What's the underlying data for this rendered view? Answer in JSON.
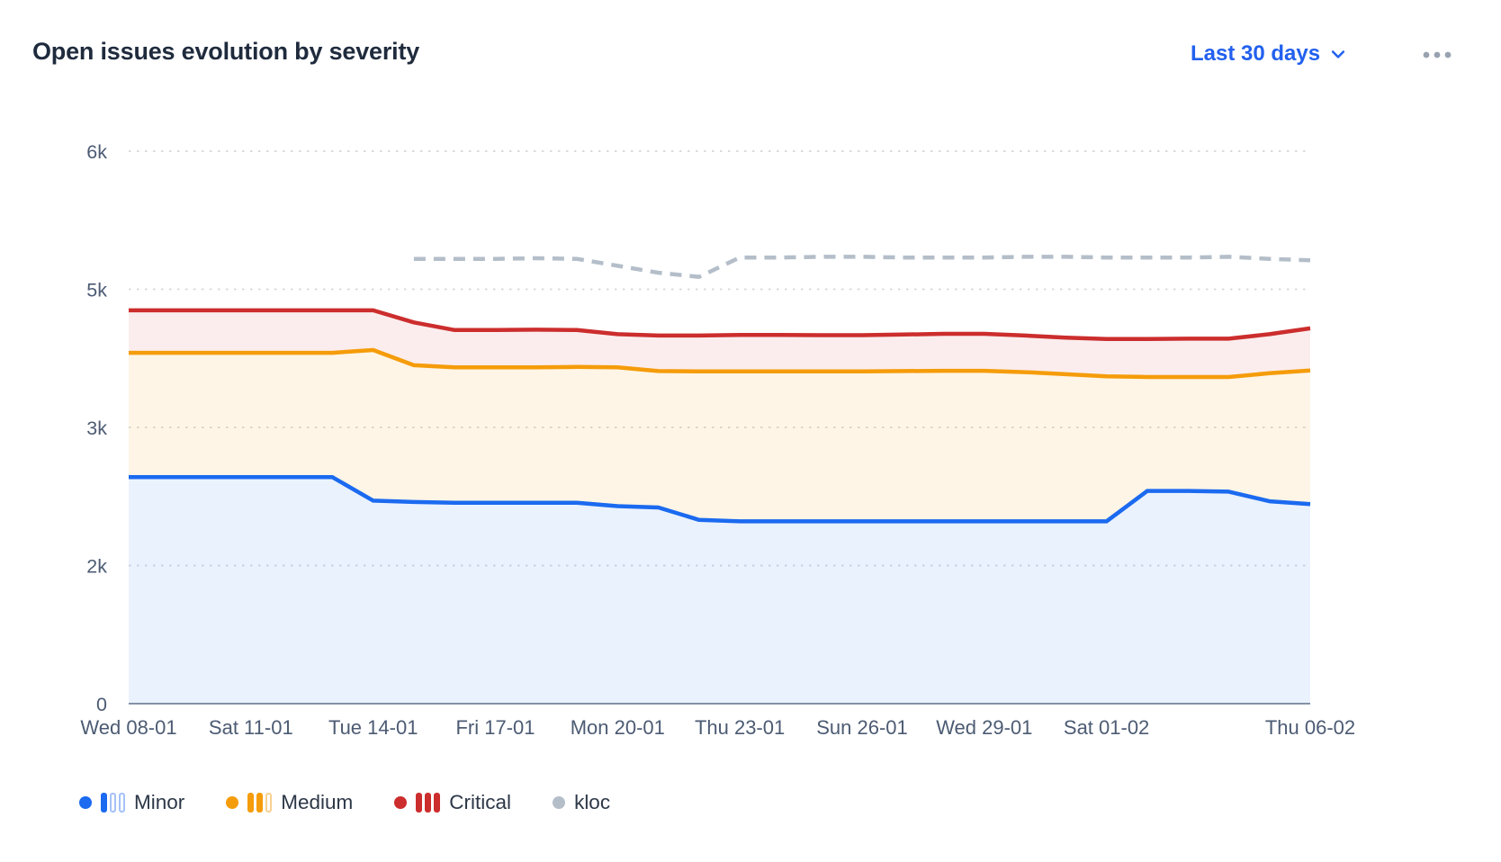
{
  "header": {
    "title": "Open issues evolution by severity",
    "range_selector": {
      "label": "Last 30 days"
    }
  },
  "colors": {
    "accent_blue": "#2260ee",
    "title_text": "#1f2b3d",
    "axis_text": "#4c5b73",
    "legend_text": "#2c3747",
    "gridline": "#d3d7dc",
    "baseline": "#8592a6",
    "ellipsis_gray": "#98a2b1",
    "fills": {
      "minor": "rgba(27,106,240,0.09)",
      "medium": "rgba(245,156,10,0.10)",
      "critical": "rgba(204,45,45,0.085)"
    }
  },
  "chart_data": {
    "type": "area",
    "stacked": true,
    "title": "Open issues evolution by severity",
    "num_points": 30,
    "grid": "dotted horizontal gridlines",
    "legend_position": "bottom-left",
    "y_axis_layout": "tick values uneven but rendered at equal pixel spacing (piecewise-linear scale)",
    "y_ticks": [
      {
        "value": 0,
        "label": "0"
      },
      {
        "value": 2000,
        "label": "2k"
      },
      {
        "value": 3000,
        "label": "3k"
      },
      {
        "value": 5000,
        "label": "5k"
      },
      {
        "value": 6000,
        "label": "6k"
      }
    ],
    "x_labels": [
      {
        "i": 0,
        "label": "Wed 08-01"
      },
      {
        "i": 3,
        "label": "Sat 11-01"
      },
      {
        "i": 6,
        "label": "Tue 14-01"
      },
      {
        "i": 9,
        "label": "Fri 17-01"
      },
      {
        "i": 12,
        "label": "Mon 20-01"
      },
      {
        "i": 15,
        "label": "Thu 23-01"
      },
      {
        "i": 18,
        "label": "Sun 26-01"
      },
      {
        "i": 21,
        "label": "Wed 29-01"
      },
      {
        "i": 24,
        "label": "Sat 01-02"
      },
      {
        "i": 29,
        "label": "Thu 06-02"
      }
    ],
    "series": [
      {
        "name": "Minor",
        "type": "area",
        "color": "#1b6af0",
        "values": [
          2640,
          2640,
          2640,
          2640,
          2640,
          2640,
          2470,
          2460,
          2455,
          2455,
          2455,
          2455,
          2430,
          2420,
          2330,
          2320,
          2320,
          2320,
          2320,
          2320,
          2320,
          2320,
          2320,
          2320,
          2320,
          2540,
          2540,
          2535,
          2465,
          2445
        ]
      },
      {
        "name": "Medium",
        "type": "area",
        "color": "#f59c0a",
        "values": [
          1440,
          1440,
          1440,
          1440,
          1440,
          1440,
          1650,
          1440,
          1415,
          1415,
          1415,
          1420,
          1440,
          1395,
          1480,
          1490,
          1490,
          1490,
          1490,
          1495,
          1500,
          1500,
          1480,
          1450,
          1420,
          1190,
          1190,
          1195,
          1320,
          1380
        ]
      },
      {
        "name": "Critical",
        "type": "area",
        "color": "#cc2d2d",
        "values": [
          615,
          615,
          615,
          615,
          615,
          615,
          575,
          620,
          540,
          540,
          545,
          535,
          480,
          515,
          520,
          530,
          530,
          525,
          525,
          530,
          535,
          535,
          530,
          530,
          540,
          550,
          555,
          555,
          565,
          610
        ]
      },
      {
        "name": "kloc",
        "type": "line-dashed",
        "stacked": false,
        "color": "#b4bec9",
        "values": [
          null,
          null,
          null,
          null,
          null,
          null,
          null,
          5220,
          5220,
          5220,
          5225,
          5220,
          5170,
          5120,
          5090,
          5230,
          5230,
          5235,
          5235,
          5230,
          5230,
          5230,
          5235,
          5235,
          5230,
          5230,
          5230,
          5235,
          5220,
          5210
        ]
      }
    ],
    "legend": [
      {
        "label": "Minor",
        "color": "#1b6af0",
        "light": "#a5c2f8",
        "bars_filled": 1,
        "bars_total": 3
      },
      {
        "label": "Medium",
        "color": "#f59c0a",
        "light": "#f8d191",
        "bars_filled": 2,
        "bars_total": 3
      },
      {
        "label": "Critical",
        "color": "#cc2d2d",
        "light": "#eba5a5",
        "bars_filled": 3,
        "bars_total": 3
      },
      {
        "label": "kloc",
        "color": "#b4bec9",
        "light": "#d7dde4",
        "bars_filled": 0,
        "bars_total": 0
      }
    ]
  }
}
